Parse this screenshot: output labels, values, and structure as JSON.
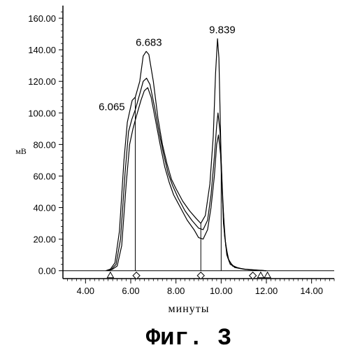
{
  "chart_data": {
    "type": "line",
    "xlabel": "минуты",
    "ylabel": "мВ",
    "caption": "Фиг. 3",
    "xlim": [
      3.0,
      15.0
    ],
    "ylim": [
      -5,
      168
    ],
    "x_ticks": [
      {
        "value": 4,
        "label": "4.00"
      },
      {
        "value": 6,
        "label": "6.00"
      },
      {
        "value": 8,
        "label": "8.00"
      },
      {
        "value": 10,
        "label": "10.00"
      },
      {
        "value": 12,
        "label": "12.00"
      },
      {
        "value": 14,
        "label": "14.00"
      }
    ],
    "y_ticks": [
      {
        "value": 0,
        "label": "0.00"
      },
      {
        "value": 20,
        "label": "20.00"
      },
      {
        "value": 40,
        "label": "40.00"
      },
      {
        "value": 60,
        "label": "60.00"
      },
      {
        "value": 80,
        "label": "80.00"
      },
      {
        "value": 100,
        "label": "100.00"
      },
      {
        "value": 120,
        "label": "120.00"
      },
      {
        "value": 140,
        "label": "140.00"
      },
      {
        "value": 160,
        "label": "160.00"
      }
    ],
    "series": [
      {
        "points": [
          [
            4.9,
            0
          ],
          [
            5.1,
            1
          ],
          [
            5.3,
            5
          ],
          [
            5.5,
            25
          ],
          [
            5.7,
            70
          ],
          [
            5.85,
            94
          ],
          [
            6.0,
            104
          ],
          [
            6.065,
            108
          ],
          [
            6.2,
            110
          ],
          [
            6.4,
            120
          ],
          [
            6.55,
            136
          ],
          [
            6.683,
            139
          ],
          [
            6.8,
            137
          ],
          [
            7.0,
            120
          ],
          [
            7.2,
            97
          ],
          [
            7.4,
            80
          ],
          [
            7.6,
            68
          ],
          [
            7.8,
            58
          ],
          [
            8.0,
            52
          ],
          [
            8.3,
            44
          ],
          [
            8.6,
            38
          ],
          [
            8.9,
            33
          ],
          [
            9.1,
            30
          ],
          [
            9.3,
            35
          ],
          [
            9.5,
            55
          ],
          [
            9.65,
            85
          ],
          [
            9.75,
            125
          ],
          [
            9.839,
            147
          ],
          [
            9.9,
            135
          ],
          [
            10.0,
            70
          ],
          [
            10.1,
            30
          ],
          [
            10.25,
            10
          ],
          [
            10.4,
            4
          ],
          [
            10.7,
            2
          ],
          [
            11.0,
            1
          ],
          [
            11.5,
            0.5
          ],
          [
            12.0,
            0
          ]
        ]
      },
      {
        "points": [
          [
            4.95,
            0
          ],
          [
            5.15,
            1
          ],
          [
            5.35,
            4
          ],
          [
            5.55,
            20
          ],
          [
            5.75,
            62
          ],
          [
            5.9,
            88
          ],
          [
            6.05,
            96
          ],
          [
            6.2,
            102
          ],
          [
            6.4,
            112
          ],
          [
            6.55,
            120
          ],
          [
            6.7,
            122
          ],
          [
            6.85,
            118
          ],
          [
            7.05,
            104
          ],
          [
            7.25,
            88
          ],
          [
            7.45,
            74
          ],
          [
            7.65,
            62
          ],
          [
            7.85,
            54
          ],
          [
            8.1,
            46
          ],
          [
            8.4,
            38
          ],
          [
            8.7,
            32
          ],
          [
            9.0,
            27
          ],
          [
            9.2,
            26
          ],
          [
            9.4,
            32
          ],
          [
            9.55,
            48
          ],
          [
            9.7,
            72
          ],
          [
            9.8,
            92
          ],
          [
            9.86,
            100
          ],
          [
            9.95,
            88
          ],
          [
            10.05,
            52
          ],
          [
            10.15,
            22
          ],
          [
            10.3,
            8
          ],
          [
            10.5,
            3
          ],
          [
            10.8,
            1.5
          ],
          [
            11.3,
            0.5
          ],
          [
            12.0,
            0
          ]
        ]
      },
      {
        "points": [
          [
            5.0,
            0
          ],
          [
            5.2,
            1
          ],
          [
            5.4,
            3
          ],
          [
            5.6,
            16
          ],
          [
            5.8,
            55
          ],
          [
            5.95,
            80
          ],
          [
            6.1,
            90
          ],
          [
            6.25,
            98
          ],
          [
            6.45,
            108
          ],
          [
            6.6,
            114
          ],
          [
            6.75,
            116
          ],
          [
            6.9,
            110
          ],
          [
            7.1,
            95
          ],
          [
            7.3,
            80
          ],
          [
            7.5,
            66
          ],
          [
            7.7,
            56
          ],
          [
            7.9,
            48
          ],
          [
            8.2,
            40
          ],
          [
            8.5,
            32
          ],
          [
            8.8,
            26
          ],
          [
            9.0,
            21
          ],
          [
            9.2,
            20
          ],
          [
            9.4,
            26
          ],
          [
            9.55,
            40
          ],
          [
            9.7,
            60
          ],
          [
            9.8,
            80
          ],
          [
            9.88,
            86
          ],
          [
            9.97,
            74
          ],
          [
            10.07,
            42
          ],
          [
            10.2,
            16
          ],
          [
            10.35,
            6
          ],
          [
            10.6,
            2
          ],
          [
            11.0,
            1
          ],
          [
            11.6,
            0.3
          ],
          [
            12.0,
            0
          ]
        ]
      }
    ],
    "peak_labels": [
      {
        "x": 6.065,
        "y": 108,
        "text": "6.065"
      },
      {
        "x": 6.683,
        "y": 139,
        "text": "6.683"
      },
      {
        "x": 9.839,
        "y": 147,
        "text": "9.839"
      }
    ],
    "boundary_lines": [
      6.2,
      9.1,
      10.0
    ],
    "triangle_markers": [
      5.1,
      11.75,
      12.05
    ],
    "diamond_markers": [
      6.25,
      9.1,
      11.4
    ]
  }
}
